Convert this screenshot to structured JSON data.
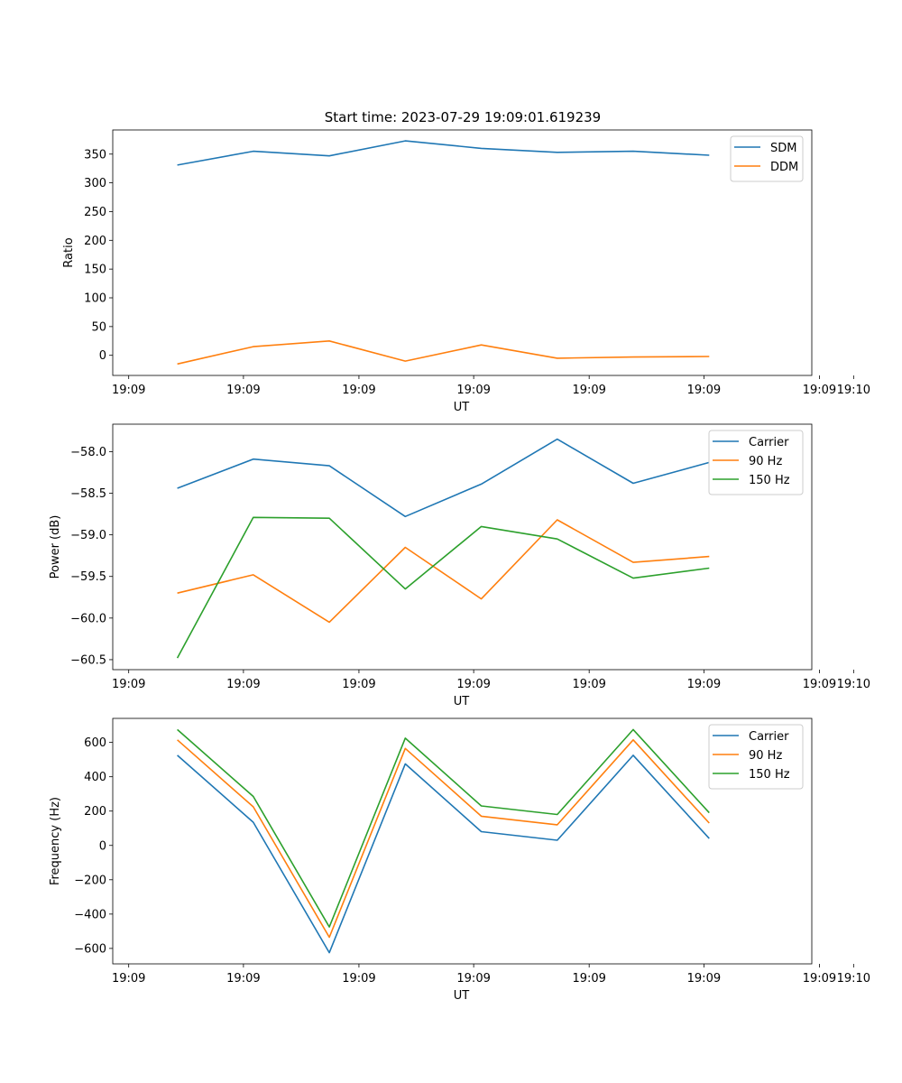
{
  "chart_data": [
    {
      "type": "line",
      "title": "Start time: 2023-07-29 19:09:01.619239",
      "xlabel": "UT",
      "ylabel": "Ratio",
      "x": [
        1,
        2,
        3,
        4,
        5,
        6,
        7,
        8
      ],
      "xlim": [
        0.15,
        9.35
      ],
      "xticks": [
        0.36,
        1.87,
        3.39,
        4.9,
        6.42,
        7.93,
        9.45,
        9.9
      ],
      "xtick_labels": [
        "19:09",
        "19:09",
        "19:09",
        "19:09",
        "19:09",
        "19:09",
        "19:09",
        "19:10"
      ],
      "ylim": [
        -35,
        392
      ],
      "yticks": [
        0,
        50,
        100,
        150,
        200,
        250,
        300,
        350
      ],
      "ytick_labels": [
        "0",
        "50",
        "100",
        "150",
        "200",
        "250",
        "300",
        "350"
      ],
      "legend_position": "top-right",
      "series": [
        {
          "name": "SDM",
          "color": "#1f77b4",
          "values": [
            331,
            355,
            347,
            373,
            360,
            353,
            355,
            348
          ]
        },
        {
          "name": "DDM",
          "color": "#ff7f0e",
          "values": [
            -15,
            15,
            25,
            -10,
            18,
            -5,
            -3,
            -2
          ]
        }
      ]
    },
    {
      "type": "line",
      "title": "",
      "xlabel": "UT",
      "ylabel": "Power (dB)",
      "x": [
        1,
        2,
        3,
        4,
        5,
        6,
        7,
        8
      ],
      "xlim": [
        0.15,
        9.35
      ],
      "xticks": [
        0.36,
        1.87,
        3.39,
        4.9,
        6.42,
        7.93,
        9.45,
        9.9
      ],
      "xtick_labels": [
        "19:09",
        "19:09",
        "19:09",
        "19:09",
        "19:09",
        "19:09",
        "19:09",
        "19:10"
      ],
      "ylim": [
        -60.62,
        -57.67
      ],
      "yticks": [
        -60.5,
        -60.0,
        -59.5,
        -59.0,
        -58.5,
        -58.0
      ],
      "ytick_labels": [
        "−60.5",
        "−60.0",
        "−59.5",
        "−59.0",
        "−58.5",
        "−58.0"
      ],
      "legend_position": "top-right",
      "series": [
        {
          "name": "Carrier",
          "color": "#1f77b4",
          "values": [
            -58.44,
            -58.09,
            -58.17,
            -58.78,
            -58.39,
            -57.85,
            -58.38,
            -58.13
          ]
        },
        {
          "name": "90 Hz",
          "color": "#ff7f0e",
          "values": [
            -59.7,
            -59.48,
            -60.05,
            -59.15,
            -59.77,
            -58.82,
            -59.33,
            -59.26
          ]
        },
        {
          "name": "150 Hz",
          "color": "#2ca02c",
          "values": [
            -60.48,
            -58.79,
            -58.8,
            -59.65,
            -58.9,
            -59.05,
            -59.52,
            -59.4
          ]
        }
      ]
    },
    {
      "type": "line",
      "title": "",
      "xlabel": "UT",
      "ylabel": "Frequency (Hz)",
      "x": [
        1,
        2,
        3,
        4,
        5,
        6,
        7,
        8
      ],
      "xlim": [
        0.15,
        9.35
      ],
      "xticks": [
        0.36,
        1.87,
        3.39,
        4.9,
        6.42,
        7.93,
        9.45,
        9.9
      ],
      "xtick_labels": [
        "19:09",
        "19:09",
        "19:09",
        "19:09",
        "19:09",
        "19:09",
        "19:09",
        "19:10"
      ],
      "ylim": [
        -690,
        740
      ],
      "yticks": [
        -600,
        -400,
        -200,
        0,
        200,
        400,
        600
      ],
      "ytick_labels": [
        "−600",
        "−400",
        "−200",
        "0",
        "200",
        "400",
        "600"
      ],
      "legend_position": "top-right",
      "series": [
        {
          "name": "Carrier",
          "color": "#1f77b4",
          "values": [
            525,
            135,
            -625,
            475,
            80,
            30,
            525,
            40
          ]
        },
        {
          "name": "90 Hz",
          "color": "#ff7f0e",
          "values": [
            615,
            225,
            -535,
            565,
            170,
            120,
            615,
            130
          ]
        },
        {
          "name": "150 Hz",
          "color": "#2ca02c",
          "values": [
            675,
            285,
            -475,
            625,
            230,
            180,
            675,
            190
          ]
        }
      ]
    }
  ]
}
